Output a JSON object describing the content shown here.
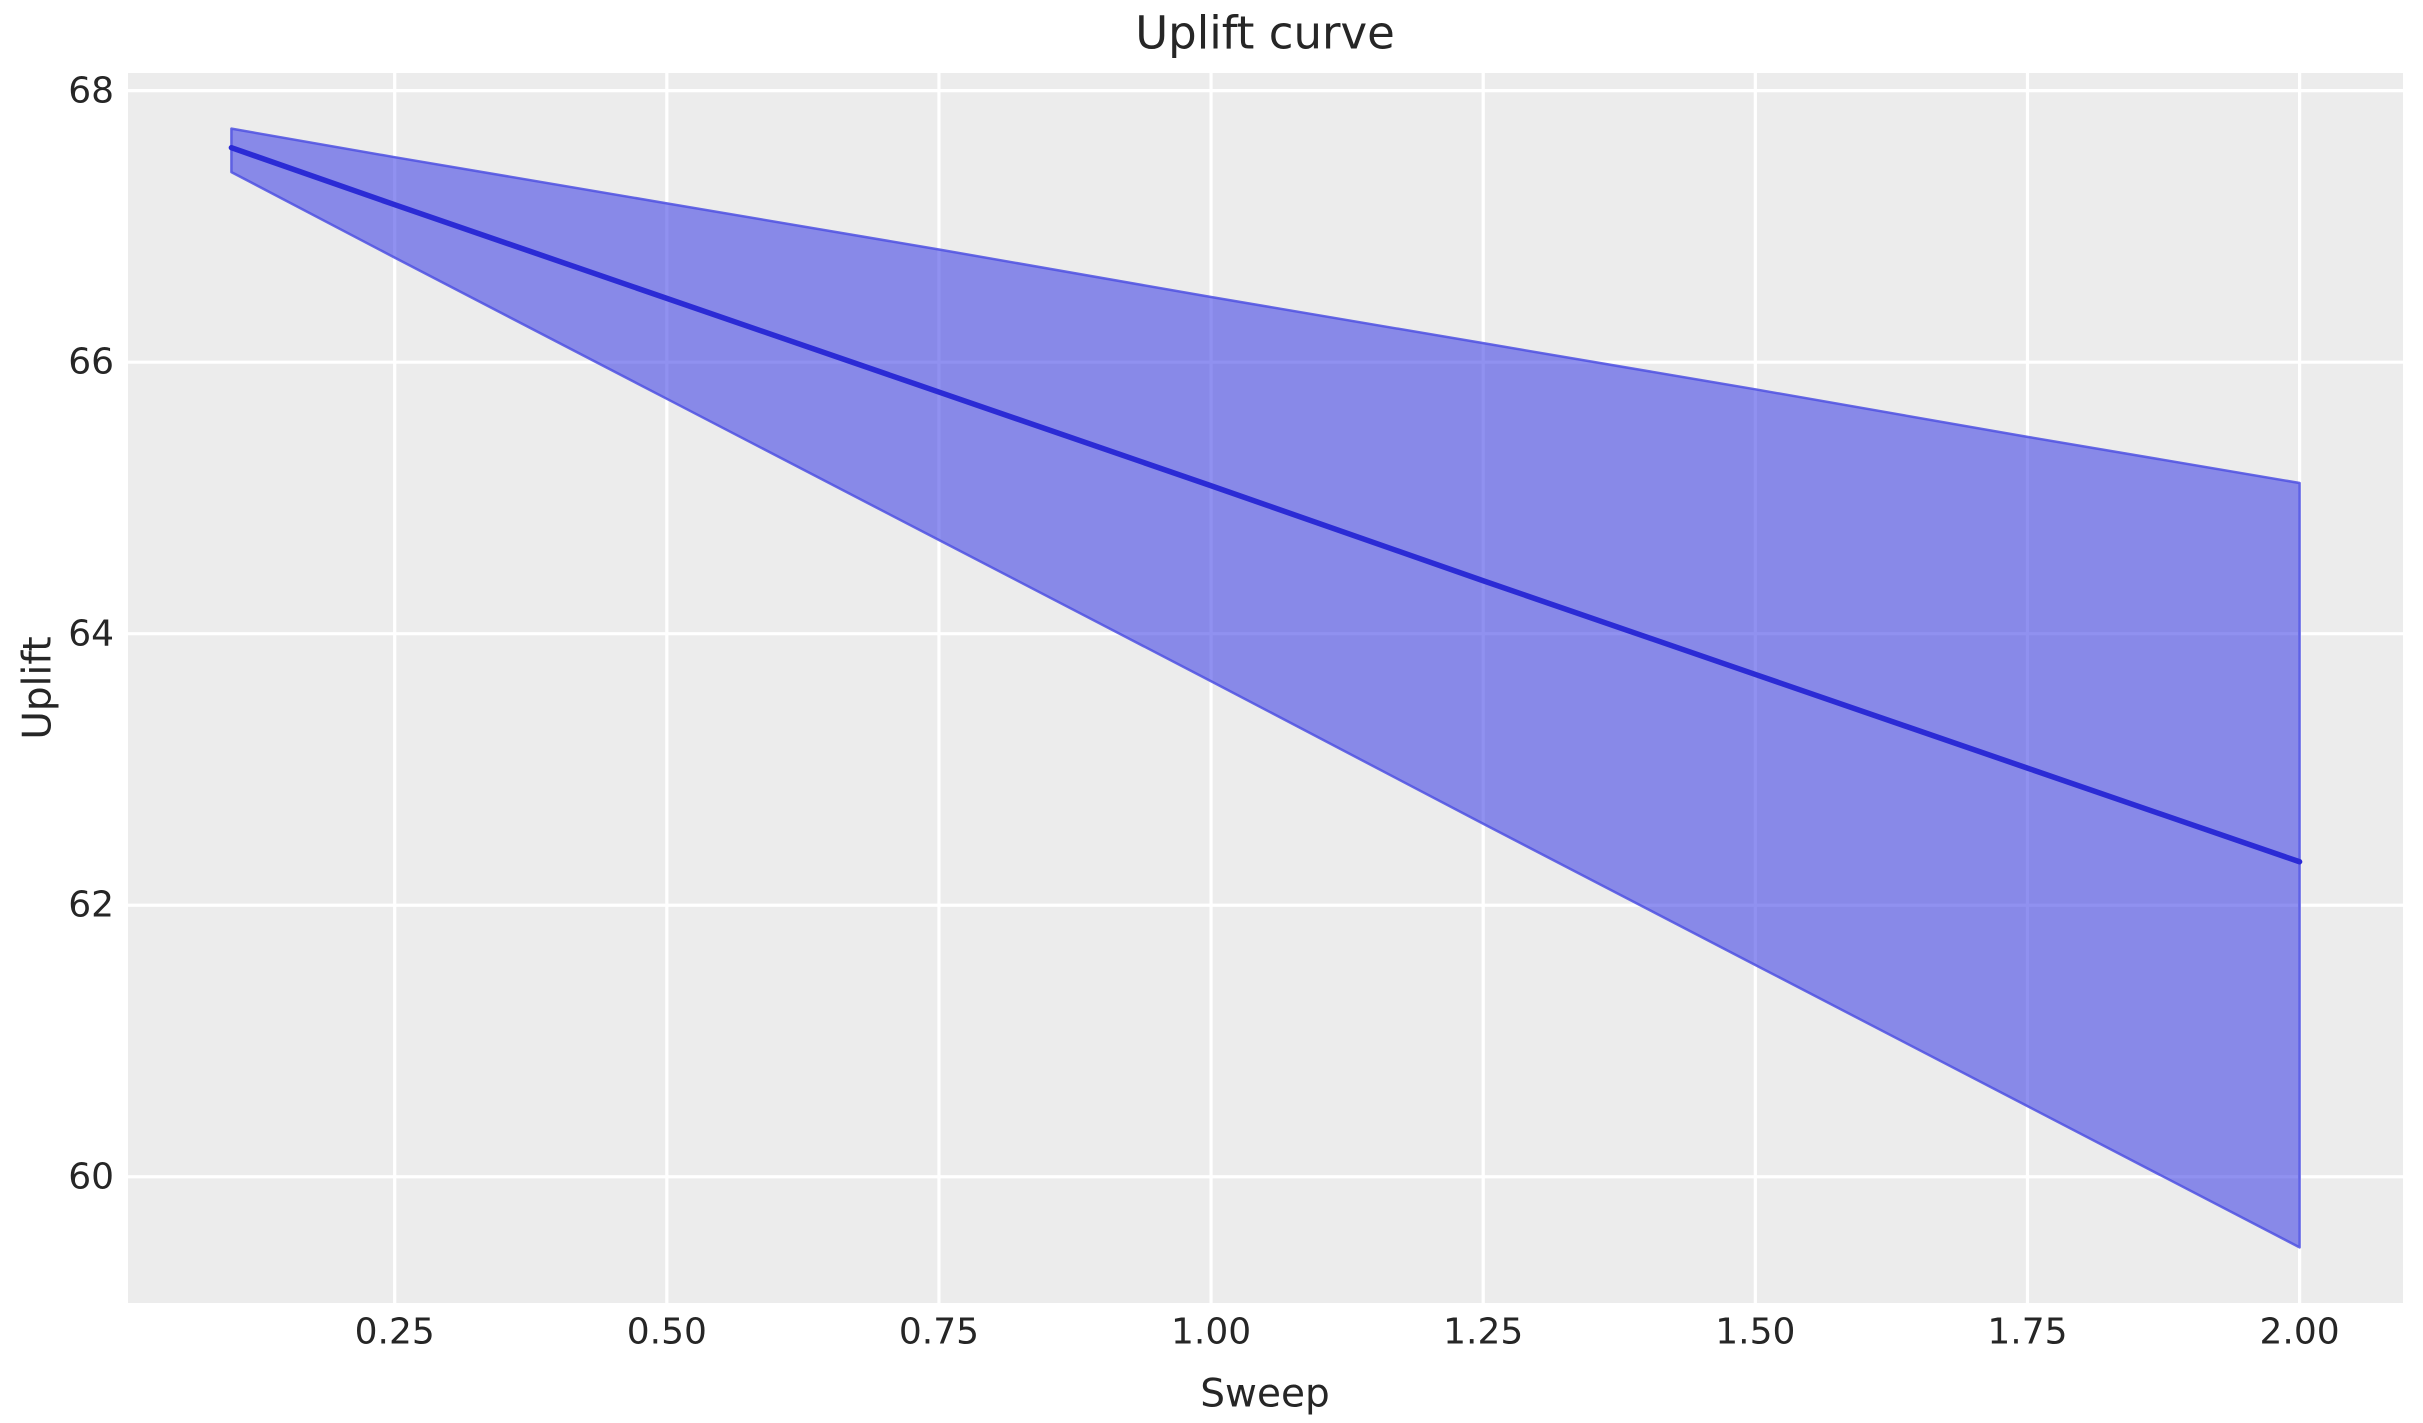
{
  "chart_data": {
    "type": "line",
    "title": "Uplift curve",
    "xlabel": "Sweep",
    "ylabel": "Uplift",
    "x": [
      0.1,
      0.25,
      0.5,
      0.75,
      1.0,
      1.25,
      1.5,
      1.75,
      2.0
    ],
    "series": [
      {
        "name": "uplift_mean",
        "style": "line",
        "values": [
          67.58,
          67.16,
          66.47,
          65.78,
          65.09,
          64.39,
          63.7,
          63.01,
          62.32
        ]
      },
      {
        "name": "ci_upper",
        "style": "band-edge",
        "values": [
          67.72,
          67.51,
          67.17,
          66.83,
          66.48,
          66.14,
          65.8,
          65.45,
          65.11
        ]
      },
      {
        "name": "ci_lower",
        "style": "band-edge",
        "values": [
          67.4,
          66.77,
          65.73,
          64.69,
          63.65,
          62.6,
          61.56,
          60.52,
          59.48
        ]
      }
    ],
    "x_ticks": [
      {
        "value": 0.25,
        "label": "0.25"
      },
      {
        "value": 0.5,
        "label": "0.50"
      },
      {
        "value": 0.75,
        "label": "0.75"
      },
      {
        "value": 1.0,
        "label": "1.00"
      },
      {
        "value": 1.25,
        "label": "1.25"
      },
      {
        "value": 1.5,
        "label": "1.50"
      },
      {
        "value": 1.75,
        "label": "1.75"
      },
      {
        "value": 2.0,
        "label": "2.00"
      }
    ],
    "y_ticks": [
      {
        "value": 60,
        "label": "60"
      },
      {
        "value": 62,
        "label": "62"
      },
      {
        "value": 64,
        "label": "64"
      },
      {
        "value": 66,
        "label": "66"
      },
      {
        "value": 68,
        "label": "68"
      }
    ],
    "xlim": [
      0.005,
      2.095
    ],
    "ylim": [
      59.07,
      68.13
    ],
    "grid": true,
    "legend_position": "none",
    "colors": {
      "line": "#2b2bd5",
      "band_fill": "#4648e6",
      "band_fill_opacity": 0.6,
      "band_edge": "#4f51e2",
      "band_edge_opacity": 0.85,
      "plot_background": "#ececec",
      "figure_background": "#ffffff",
      "gridline": "#ffffff",
      "text": "#262626"
    }
  }
}
